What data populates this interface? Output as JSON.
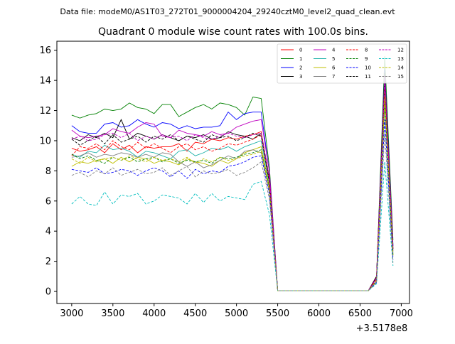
{
  "chart_data": {
    "type": "line",
    "suptitle": "Data file: modeM0/AS1T03_272T01_9000004204_29240cztM0_level2_quad_clean.evt",
    "title": "Quadrant 0 module wise count rates with 100.0s bins.",
    "xlabel": "",
    "ylabel": "",
    "x_offset_label": "+3.5178e8",
    "xlim": [
      2820,
      7100
    ],
    "ylim": [
      -0.8,
      16.6
    ],
    "xticks": [
      3000,
      3500,
      4000,
      4500,
      5000,
      5500,
      6000,
      6500,
      7000
    ],
    "yticks": [
      0,
      2,
      4,
      6,
      8,
      10,
      12,
      14,
      16
    ],
    "grid": false,
    "legend": {
      "position": "top-right",
      "columns": 4
    },
    "x": [
      3000,
      3100,
      3200,
      3300,
      3400,
      3500,
      3600,
      3700,
      3800,
      3900,
      4000,
      4100,
      4200,
      4300,
      4400,
      4500,
      4600,
      4700,
      4800,
      4900,
      5000,
      5100,
      5200,
      5300,
      5400,
      5500,
      5600,
      5700,
      5800,
      5900,
      6000,
      6100,
      6200,
      6300,
      6400,
      6500,
      6600,
      6700,
      6800,
      6900
    ],
    "series": [
      {
        "name": "0",
        "color": "#ff0000",
        "dash": "solid",
        "values": [
          9.5,
          9.3,
          9.4,
          9.6,
          9.2,
          9.8,
          9.4,
          9.7,
          9.2,
          9.6,
          9.5,
          9.6,
          9.6,
          9.8,
          9.3,
          9.9,
          9.8,
          10.1,
          10.0,
          10.2,
          10.1,
          10.3,
          10.4,
          10.6,
          7.3,
          0.05,
          0.05,
          0.05,
          0.05,
          0.05,
          0.05,
          0.05,
          0.05,
          0.05,
          0.05,
          0.05,
          0.05,
          1.0,
          14.2,
          2.8
        ]
      },
      {
        "name": "1",
        "color": "#008000",
        "dash": "solid",
        "values": [
          11.7,
          11.5,
          11.7,
          11.8,
          12.1,
          12.0,
          12.1,
          12.5,
          12.2,
          12.1,
          11.8,
          12.4,
          12.4,
          11.6,
          11.9,
          12.2,
          12.4,
          12.1,
          12.5,
          12.4,
          12.2,
          11.7,
          12.9,
          12.8,
          8.2,
          0.05,
          0.05,
          0.05,
          0.05,
          0.05,
          0.05,
          0.05,
          0.05,
          0.05,
          0.05,
          0.05,
          0.05,
          0.9,
          15.6,
          3.4
        ]
      },
      {
        "name": "2",
        "color": "#0000ff",
        "dash": "solid",
        "values": [
          11.0,
          10.6,
          10.5,
          10.5,
          11.1,
          11.2,
          10.9,
          11.0,
          11.4,
          11.1,
          10.9,
          11.2,
          11.1,
          10.8,
          11.0,
          10.8,
          10.9,
          10.9,
          11.0,
          11.9,
          11.4,
          11.8,
          11.9,
          11.9,
          7.9,
          0.05,
          0.05,
          0.05,
          0.05,
          0.05,
          0.05,
          0.05,
          0.05,
          0.05,
          0.05,
          0.05,
          0.05,
          0.9,
          14.7,
          3.1
        ]
      },
      {
        "name": "3",
        "color": "#000000",
        "dash": "solid",
        "values": [
          10.2,
          10.0,
          10.4,
          10.2,
          10.5,
          10.2,
          11.4,
          10.1,
          10.5,
          10.3,
          10.1,
          10.4,
          10.2,
          10.0,
          10.3,
          10.2,
          10.4,
          10.1,
          10.2,
          10.6,
          10.4,
          10.3,
          10.1,
          10.5,
          7.5,
          0.05,
          0.05,
          0.05,
          0.05,
          0.05,
          0.05,
          0.05,
          0.05,
          0.05,
          0.05,
          0.05,
          0.05,
          1.0,
          14.5,
          3.0
        ]
      },
      {
        "name": "4",
        "color": "#bf00bf",
        "dash": "solid",
        "values": [
          10.7,
          10.3,
          10.2,
          10.3,
          10.4,
          10.8,
          10.6,
          10.5,
          10.9,
          11.2,
          11.1,
          10.3,
          10.2,
          10.7,
          10.5,
          10.4,
          10.3,
          10.6,
          10.4,
          10.5,
          10.9,
          11.1,
          11.3,
          11.4,
          7.9,
          0.05,
          0.05,
          0.05,
          0.05,
          0.05,
          0.05,
          0.05,
          0.05,
          0.05,
          0.05,
          0.05,
          0.05,
          0.9,
          14.3,
          2.9
        ]
      },
      {
        "name": "5",
        "color": "#20b2aa",
        "dash": "solid",
        "values": [
          9.1,
          8.9,
          9.3,
          9.2,
          9.7,
          9.4,
          9.5,
          9.3,
          8.9,
          9.3,
          9.2,
          9.0,
          8.8,
          9.3,
          9.4,
          9.0,
          9.2,
          9.5,
          9.4,
          9.6,
          9.3,
          9.6,
          9.8,
          10.0,
          7.1,
          0.05,
          0.05,
          0.05,
          0.05,
          0.05,
          0.05,
          0.05,
          0.05,
          0.05,
          0.05,
          0.05,
          0.05,
          0.7,
          13.3,
          2.6
        ]
      },
      {
        "name": "6",
        "color": "#bfbf00",
        "dash": "solid",
        "values": [
          8.3,
          8.6,
          8.5,
          8.7,
          8.8,
          8.5,
          8.9,
          8.6,
          8.9,
          8.8,
          8.5,
          8.7,
          8.6,
          8.4,
          8.8,
          8.6,
          8.5,
          8.3,
          8.7,
          8.5,
          8.8,
          9.2,
          9.4,
          9.6,
          6.9,
          0.05,
          0.05,
          0.05,
          0.05,
          0.05,
          0.05,
          0.05,
          0.05,
          0.05,
          0.05,
          0.05,
          0.05,
          0.7,
          13.0,
          2.5
        ]
      },
      {
        "name": "7",
        "color": "#808080",
        "dash": "solid",
        "values": [
          8.9,
          9.0,
          9.2,
          8.9,
          9.1,
          9.0,
          9.2,
          9.1,
          8.9,
          9.1,
          8.9,
          9.2,
          9.1,
          8.6,
          8.3,
          8.6,
          8.2,
          8.4,
          8.7,
          9.0,
          8.8,
          9.3,
          9.4,
          9.2,
          6.6,
          0.05,
          0.05,
          0.05,
          0.05,
          0.05,
          0.05,
          0.05,
          0.05,
          0.05,
          0.05,
          0.05,
          0.05,
          0.7,
          12.3,
          2.3
        ]
      },
      {
        "name": "8",
        "color": "#ff0000",
        "dash": "dashed",
        "values": [
          9.0,
          9.6,
          9.5,
          9.8,
          9.4,
          10.0,
          9.6,
          9.4,
          9.9,
          9.5,
          9.8,
          9.5,
          9.2,
          9.6,
          9.8,
          9.4,
          9.6,
          9.3,
          9.5,
          9.8,
          9.7,
          9.9,
          10.1,
          10.4,
          7.3,
          0.05,
          0.05,
          0.05,
          0.05,
          0.05,
          0.05,
          0.05,
          0.05,
          0.05,
          0.05,
          0.05,
          0.05,
          0.8,
          13.6,
          2.7
        ]
      },
      {
        "name": "9",
        "color": "#008000",
        "dash": "dashed",
        "values": [
          9.1,
          8.8,
          9.0,
          8.7,
          8.5,
          8.9,
          8.7,
          8.9,
          8.6,
          8.8,
          8.9,
          8.6,
          8.8,
          8.5,
          8.7,
          8.6,
          8.7,
          8.5,
          8.9,
          8.8,
          8.9,
          9.1,
          9.2,
          9.4,
          6.8,
          0.05,
          0.05,
          0.05,
          0.05,
          0.05,
          0.05,
          0.05,
          0.05,
          0.05,
          0.05,
          0.05,
          0.05,
          0.7,
          12.6,
          2.4
        ]
      },
      {
        "name": "10",
        "color": "#0000ff",
        "dash": "dashed",
        "values": [
          8.1,
          8.0,
          7.9,
          8.2,
          7.8,
          7.9,
          8.1,
          8.0,
          7.7,
          8.0,
          8.2,
          8.0,
          7.6,
          8.0,
          7.5,
          8.1,
          7.8,
          8.0,
          7.9,
          8.3,
          8.4,
          8.6,
          8.9,
          9.0,
          6.4,
          0.05,
          0.05,
          0.05,
          0.05,
          0.05,
          0.05,
          0.05,
          0.05,
          0.05,
          0.05,
          0.05,
          0.05,
          0.6,
          11.4,
          2.1
        ]
      },
      {
        "name": "11",
        "color": "#000000",
        "dash": "dashed",
        "values": [
          10.1,
          9.7,
          10.0,
          10.3,
          9.8,
          10.4,
          9.9,
          10.1,
          10.3,
          9.9,
          10.3,
          10.1,
          10.4,
          10.0,
          10.3,
          10.1,
          9.9,
          10.4,
          10.2,
          10.3,
          10.0,
          10.2,
          10.5,
          10.3,
          7.2,
          0.05,
          0.05,
          0.05,
          0.05,
          0.05,
          0.05,
          0.05,
          0.05,
          0.05,
          0.05,
          0.05,
          0.05,
          0.9,
          13.9,
          2.8
        ]
      },
      {
        "name": "12",
        "color": "#bf00bf",
        "dash": "dashed",
        "values": [
          10.1,
          10.3,
          10.0,
          10.1,
          10.4,
          10.5,
          10.2,
          10.5,
          10.0,
          10.3,
          10.1,
          10.4,
          10.2,
          10.3,
          10.0,
          10.4,
          10.2,
          10.1,
          10.3,
          10.5,
          10.3,
          10.2,
          10.4,
          10.5,
          7.4,
          0.05,
          0.05,
          0.05,
          0.05,
          0.05,
          0.05,
          0.05,
          0.05,
          0.05,
          0.05,
          0.05,
          0.05,
          0.9,
          14.0,
          2.9
        ]
      },
      {
        "name": "13",
        "color": "#00bfbf",
        "dash": "dashed",
        "values": [
          5.8,
          6.3,
          5.8,
          5.7,
          6.6,
          5.8,
          6.4,
          6.3,
          6.5,
          5.8,
          6.0,
          6.4,
          6.3,
          6.2,
          5.8,
          6.5,
          5.9,
          6.5,
          6.0,
          6.3,
          6.2,
          6.1,
          7.1,
          7.3,
          5.1,
          0.05,
          0.05,
          0.05,
          0.05,
          0.05,
          0.05,
          0.05,
          0.05,
          0.05,
          0.05,
          0.05,
          0.05,
          0.5,
          8.6,
          1.7
        ]
      },
      {
        "name": "14",
        "color": "#bfbf00",
        "dash": "dashed",
        "values": [
          8.8,
          8.5,
          8.9,
          8.6,
          8.8,
          8.9,
          8.7,
          9.0,
          8.8,
          8.6,
          8.9,
          8.7,
          8.8,
          8.6,
          8.9,
          8.5,
          8.8,
          8.6,
          8.9,
          8.7,
          8.8,
          9.0,
          9.1,
          9.3,
          6.7,
          0.05,
          0.05,
          0.05,
          0.05,
          0.05,
          0.05,
          0.05,
          0.05,
          0.05,
          0.05,
          0.05,
          0.05,
          0.7,
          12.8,
          2.4
        ]
      },
      {
        "name": "15",
        "color": "#808080",
        "dash": "dashed",
        "values": [
          7.7,
          7.9,
          7.6,
          8.0,
          7.8,
          8.2,
          7.7,
          7.9,
          8.1,
          7.8,
          7.9,
          8.2,
          7.7,
          8.0,
          8.3,
          7.6,
          8.0,
          7.8,
          7.9,
          8.1,
          7.7,
          7.9,
          8.2,
          8.6,
          6.1,
          0.05,
          0.05,
          0.05,
          0.05,
          0.05,
          0.05,
          0.05,
          0.05,
          0.05,
          0.05,
          0.05,
          0.05,
          0.6,
          10.5,
          1.9
        ]
      }
    ]
  }
}
